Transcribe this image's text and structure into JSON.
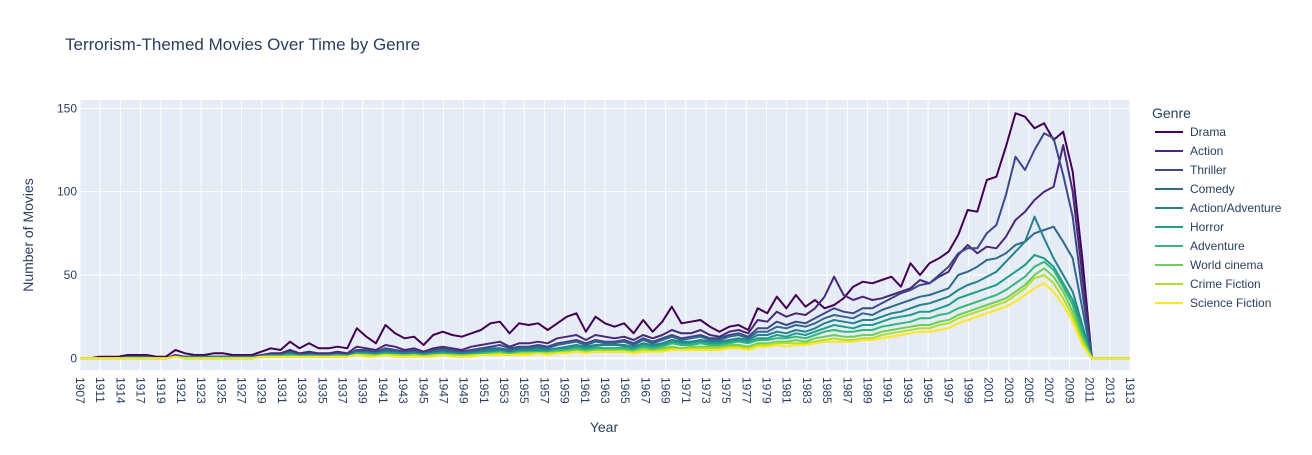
{
  "chart_data": {
    "type": "line",
    "title": "Terrorism-Themed Movies Over Time by Genre",
    "xlabel": "Year",
    "ylabel": "Number of Movies",
    "legend_title": "Genre",
    "legend_position": "right",
    "grid": true,
    "ylim": [
      -7,
      155
    ],
    "yticks": [
      0,
      50,
      100,
      150
    ],
    "x_ticks": [
      "1907",
      "1911",
      "1914",
      "1917",
      "1919",
      "1921",
      "1923",
      "1925",
      "1927",
      "1929",
      "1931",
      "1933",
      "1935",
      "1937",
      "1939",
      "1941",
      "1943",
      "1945",
      "1947",
      "1949",
      "1951",
      "1953",
      "1955",
      "1957",
      "1959",
      "1961",
      "1963",
      "1965",
      "1967",
      "1969",
      "1971",
      "1973",
      "1975",
      "1977",
      "1979",
      "1981",
      "1983",
      "1985",
      "1987",
      "1989",
      "1991",
      "1993",
      "1995",
      "1997",
      "1999",
      "2001",
      "2003",
      "2005",
      "2007",
      "2009",
      "2011",
      "2013",
      "1913"
    ],
    "colors": {
      "Drama": "#440154",
      "Action": "#482878",
      "Thriller": "#3e4989",
      "Comedy": "#31688e",
      "Action/Adventure": "#26828e",
      "Horror": "#1f9e89",
      "Adventure": "#35b779",
      "World cinema": "#6ece58",
      "Crime Fiction": "#b5de2b",
      "Science Fiction": "#fde725"
    },
    "series": [
      {
        "name": "Drama",
        "values": [
          0,
          0,
          1,
          1,
          1,
          2,
          2,
          2,
          1,
          1,
          5,
          3,
          2,
          2,
          3,
          3,
          2,
          2,
          2,
          4,
          6,
          5,
          10,
          6,
          9,
          6,
          6,
          7,
          6,
          18,
          13,
          9,
          20,
          15,
          12,
          13,
          8,
          14,
          16,
          14,
          13,
          15,
          17,
          21,
          22,
          15,
          21,
          20,
          21,
          17,
          21,
          25,
          27,
          16,
          25,
          21,
          19,
          21,
          15,
          23,
          16,
          22,
          31,
          21,
          22,
          23,
          19,
          16,
          19,
          20,
          17,
          30,
          27,
          37,
          30,
          38,
          31,
          35,
          30,
          32,
          36,
          43,
          46,
          45,
          47,
          49,
          43,
          57,
          50,
          57,
          60,
          64,
          74,
          89,
          88,
          107,
          109,
          127,
          147,
          145,
          138,
          141,
          131,
          136,
          112,
          60,
          0,
          0,
          0,
          0,
          0
        ]
      },
      {
        "name": "Action",
        "values": [
          0,
          0,
          0,
          0,
          0,
          1,
          1,
          1,
          0,
          0,
          2,
          1,
          1,
          1,
          1,
          1,
          1,
          1,
          1,
          2,
          3,
          3,
          5,
          3,
          4,
          3,
          3,
          4,
          3,
          7,
          6,
          5,
          8,
          7,
          5,
          6,
          4,
          6,
          7,
          6,
          5,
          7,
          8,
          9,
          10,
          7,
          9,
          9,
          10,
          9,
          12,
          13,
          14,
          11,
          14,
          13,
          12,
          13,
          11,
          14,
          12,
          14,
          17,
          15,
          15,
          17,
          14,
          13,
          16,
          17,
          15,
          23,
          22,
          28,
          25,
          27,
          26,
          30,
          37,
          49,
          38,
          35,
          37,
          35,
          36,
          38,
          40,
          42,
          47,
          45,
          49,
          52,
          62,
          68,
          63,
          67,
          66,
          73,
          83,
          88,
          95,
          100,
          103,
          128,
          100,
          50,
          0,
          0,
          0,
          0,
          0
        ]
      },
      {
        "name": "Thriller",
        "values": [
          0,
          0,
          0,
          0,
          0,
          1,
          1,
          1,
          0,
          0,
          1,
          1,
          1,
          1,
          1,
          1,
          1,
          1,
          1,
          2,
          2,
          2,
          4,
          2,
          3,
          2,
          2,
          3,
          2,
          5,
          5,
          4,
          6,
          5,
          4,
          5,
          3,
          5,
          6,
          5,
          4,
          5,
          6,
          7,
          8,
          6,
          7,
          7,
          8,
          7,
          9,
          10,
          11,
          9,
          11,
          10,
          10,
          11,
          9,
          12,
          10,
          12,
          14,
          12,
          13,
          14,
          12,
          12,
          14,
          15,
          13,
          18,
          18,
          22,
          20,
          22,
          21,
          24,
          27,
          30,
          28,
          27,
          30,
          30,
          33,
          36,
          39,
          41,
          44,
          45,
          50,
          55,
          63,
          66,
          66,
          75,
          80,
          98,
          121,
          113,
          125,
          135,
          132,
          110,
          85,
          40,
          0,
          0,
          0,
          0,
          0
        ]
      },
      {
        "name": "Comedy",
        "values": [
          0,
          0,
          0,
          0,
          0,
          1,
          1,
          1,
          0,
          0,
          1,
          1,
          1,
          1,
          1,
          1,
          1,
          1,
          1,
          1,
          2,
          2,
          3,
          2,
          2,
          2,
          2,
          2,
          2,
          4,
          4,
          3,
          5,
          4,
          3,
          4,
          3,
          4,
          5,
          4,
          3,
          4,
          5,
          6,
          6,
          5,
          6,
          6,
          7,
          6,
          8,
          9,
          10,
          8,
          10,
          9,
          9,
          10,
          8,
          11,
          9,
          11,
          13,
          11,
          12,
          13,
          11,
          11,
          13,
          14,
          12,
          16,
          16,
          19,
          18,
          20,
          19,
          21,
          24,
          26,
          25,
          24,
          27,
          26,
          29,
          31,
          33,
          35,
          37,
          38,
          40,
          42,
          50,
          52,
          55,
          59,
          60,
          63,
          68,
          70,
          75,
          77,
          79,
          70,
          60,
          30,
          0,
          0,
          0,
          0,
          0
        ]
      },
      {
        "name": "Action/Adventure",
        "values": [
          0,
          0,
          0,
          0,
          0,
          0,
          0,
          0,
          0,
          0,
          1,
          1,
          1,
          1,
          1,
          1,
          1,
          1,
          1,
          1,
          2,
          2,
          3,
          2,
          2,
          2,
          2,
          2,
          2,
          3,
          3,
          3,
          4,
          3,
          3,
          3,
          2,
          3,
          4,
          3,
          3,
          3,
          4,
          5,
          5,
          4,
          5,
          5,
          6,
          5,
          6,
          7,
          8,
          7,
          8,
          8,
          8,
          8,
          7,
          9,
          8,
          9,
          11,
          10,
          10,
          11,
          10,
          10,
          11,
          12,
          11,
          14,
          14,
          16,
          15,
          17,
          16,
          18,
          21,
          23,
          22,
          21,
          23,
          23,
          25,
          27,
          28,
          30,
          32,
          33,
          35,
          37,
          41,
          44,
          46,
          49,
          52,
          58,
          64,
          70,
          85,
          72,
          60,
          50,
          40,
          20,
          0,
          0,
          0,
          0,
          0
        ]
      },
      {
        "name": "Horror",
        "values": [
          0,
          0,
          0,
          0,
          0,
          0,
          0,
          0,
          0,
          0,
          1,
          0,
          0,
          0,
          0,
          0,
          0,
          0,
          0,
          1,
          1,
          1,
          2,
          1,
          2,
          1,
          1,
          2,
          1,
          3,
          3,
          2,
          3,
          3,
          2,
          3,
          2,
          3,
          3,
          3,
          2,
          3,
          3,
          4,
          4,
          3,
          4,
          4,
          5,
          4,
          5,
          6,
          7,
          6,
          7,
          6,
          6,
          7,
          6,
          8,
          7,
          8,
          10,
          9,
          9,
          10,
          9,
          9,
          10,
          11,
          10,
          12,
          12,
          14,
          13,
          15,
          14,
          16,
          18,
          20,
          19,
          18,
          20,
          20,
          22,
          24,
          25,
          26,
          28,
          28,
          30,
          32,
          36,
          38,
          40,
          42,
          44,
          48,
          52,
          56,
          62,
          60,
          55,
          45,
          35,
          18,
          0,
          0,
          0,
          0,
          0
        ]
      },
      {
        "name": "Adventure",
        "values": [
          0,
          0,
          0,
          0,
          0,
          0,
          0,
          0,
          0,
          0,
          1,
          0,
          0,
          0,
          0,
          0,
          0,
          0,
          0,
          1,
          1,
          1,
          2,
          1,
          1,
          1,
          1,
          2,
          1,
          3,
          2,
          2,
          3,
          2,
          2,
          2,
          2,
          2,
          3,
          2,
          2,
          2,
          3,
          3,
          4,
          3,
          4,
          4,
          4,
          4,
          5,
          5,
          6,
          5,
          6,
          6,
          6,
          6,
          5,
          7,
          6,
          7,
          9,
          8,
          8,
          9,
          8,
          8,
          9,
          10,
          9,
          11,
          11,
          12,
          12,
          13,
          12,
          14,
          16,
          17,
          16,
          16,
          17,
          17,
          19,
          20,
          21,
          22,
          24,
          24,
          26,
          27,
          30,
          32,
          34,
          36,
          38,
          41,
          45,
          49,
          55,
          58,
          53,
          43,
          32,
          15,
          0,
          0,
          0,
          0,
          0
        ]
      },
      {
        "name": "World cinema",
        "values": [
          0,
          0,
          0,
          0,
          0,
          0,
          0,
          0,
          0,
          0,
          1,
          0,
          0,
          0,
          0,
          0,
          0,
          0,
          0,
          1,
          1,
          1,
          1,
          1,
          1,
          1,
          1,
          1,
          1,
          2,
          2,
          2,
          2,
          2,
          2,
          2,
          1,
          2,
          2,
          2,
          2,
          2,
          2,
          3,
          3,
          2,
          3,
          3,
          3,
          3,
          4,
          4,
          5,
          4,
          5,
          5,
          5,
          5,
          4,
          6,
          5,
          6,
          7,
          6,
          7,
          7,
          7,
          7,
          8,
          8,
          7,
          9,
          9,
          10,
          10,
          11,
          10,
          12,
          13,
          14,
          13,
          13,
          14,
          14,
          16,
          17,
          18,
          19,
          20,
          20,
          22,
          23,
          26,
          28,
          30,
          32,
          34,
          36,
          40,
          44,
          50,
          54,
          49,
          40,
          28,
          12,
          0,
          0,
          0,
          0,
          0
        ]
      },
      {
        "name": "Crime Fiction",
        "values": [
          0,
          0,
          0,
          0,
          0,
          0,
          0,
          0,
          0,
          0,
          1,
          0,
          0,
          0,
          0,
          0,
          0,
          0,
          0,
          1,
          1,
          1,
          1,
          1,
          1,
          1,
          1,
          1,
          1,
          2,
          2,
          1,
          2,
          2,
          1,
          2,
          1,
          2,
          2,
          2,
          1,
          2,
          2,
          2,
          3,
          2,
          3,
          3,
          3,
          3,
          3,
          4,
          4,
          4,
          4,
          4,
          4,
          4,
          4,
          5,
          4,
          5,
          6,
          5,
          6,
          6,
          6,
          6,
          7,
          7,
          6,
          8,
          8,
          9,
          9,
          9,
          9,
          10,
          11,
          12,
          11,
          11,
          12,
          12,
          14,
          15,
          16,
          17,
          18,
          18,
          20,
          21,
          24,
          26,
          28,
          30,
          32,
          34,
          38,
          42,
          48,
          50,
          45,
          36,
          25,
          10,
          0,
          0,
          0,
          0,
          0
        ]
      },
      {
        "name": "Science Fiction",
        "values": [
          0,
          0,
          0,
          0,
          0,
          0,
          0,
          0,
          0,
          0,
          1,
          0,
          0,
          0,
          0,
          0,
          0,
          0,
          0,
          1,
          1,
          1,
          1,
          1,
          1,
          1,
          1,
          1,
          1,
          2,
          1,
          1,
          2,
          1,
          1,
          1,
          1,
          1,
          2,
          1,
          1,
          1,
          2,
          2,
          2,
          2,
          2,
          2,
          3,
          2,
          3,
          3,
          4,
          3,
          4,
          4,
          4,
          4,
          3,
          4,
          4,
          4,
          5,
          5,
          5,
          5,
          5,
          5,
          6,
          6,
          5,
          7,
          7,
          8,
          7,
          8,
          8,
          9,
          10,
          10,
          10,
          10,
          11,
          11,
          12,
          13,
          14,
          15,
          16,
          16,
          17,
          18,
          21,
          23,
          25,
          27,
          29,
          31,
          34,
          38,
          42,
          45,
          40,
          32,
          22,
          8,
          0,
          0,
          0,
          0,
          0
        ]
      }
    ]
  }
}
